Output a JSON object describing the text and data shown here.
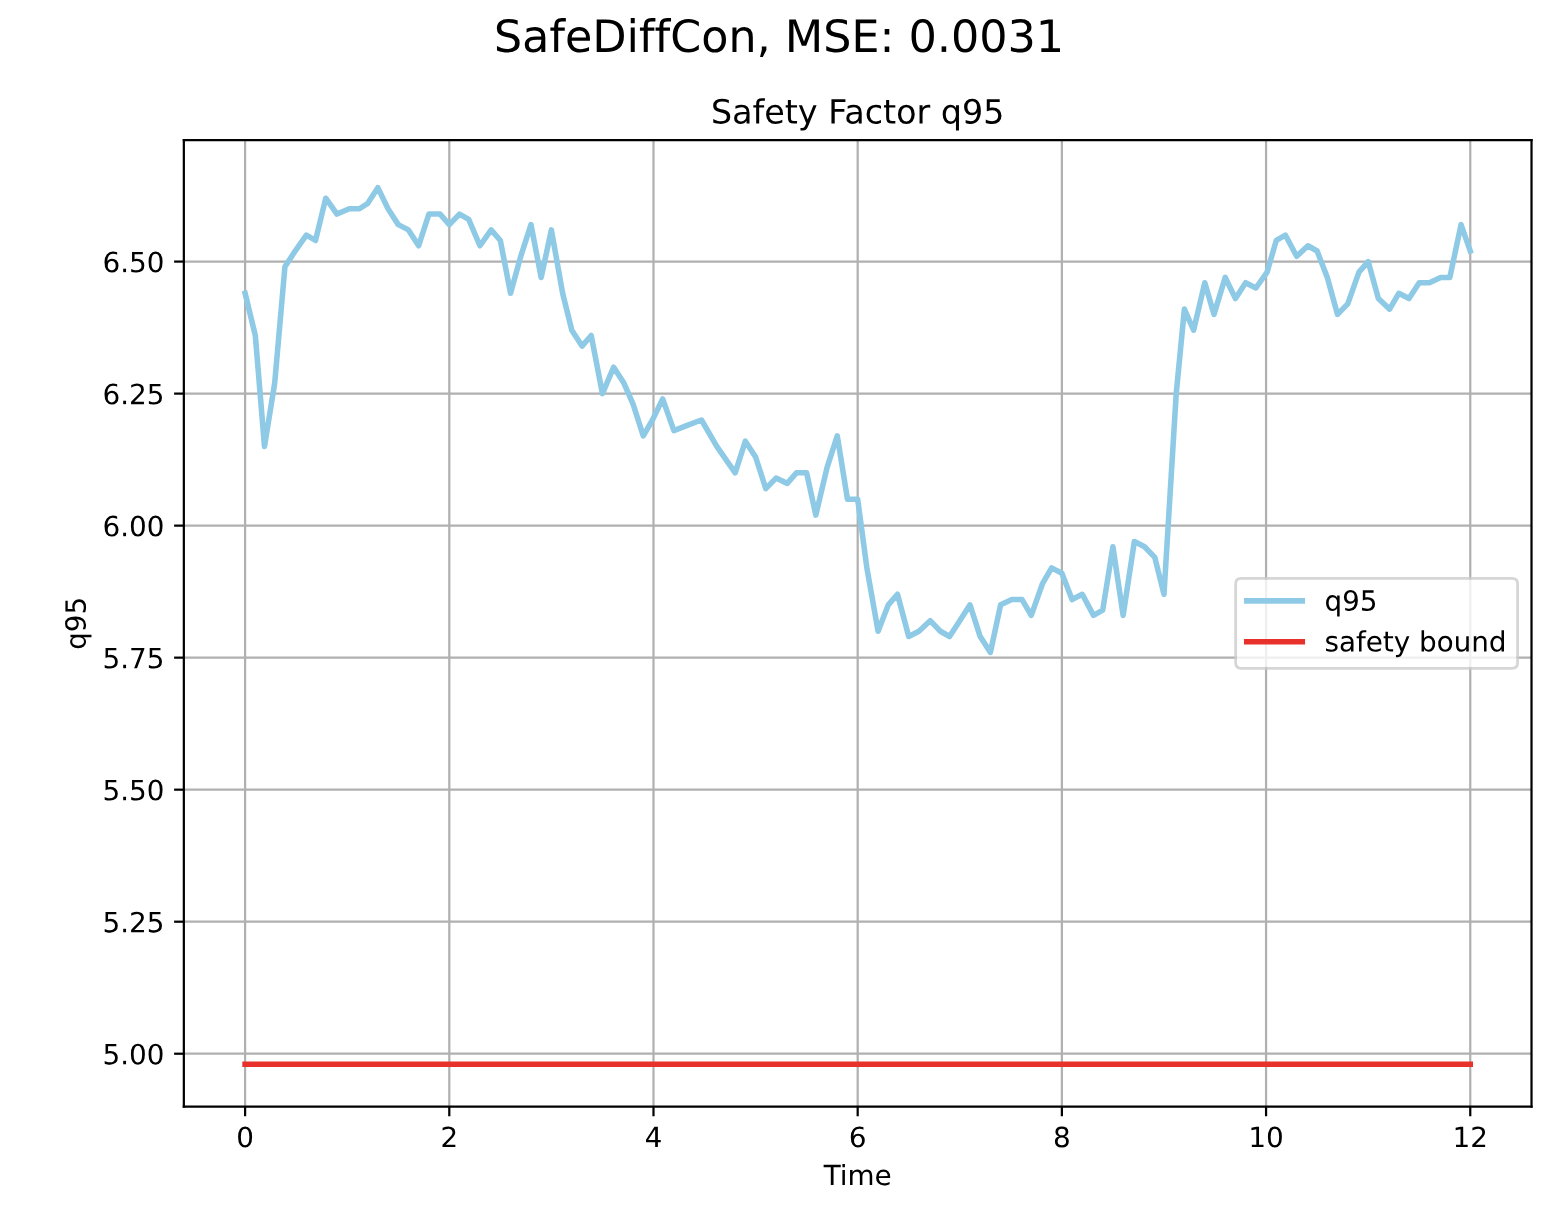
{
  "chart_data": {
    "type": "line",
    "title": "SafeDiffCon, MSE: 0.0031",
    "subtitle": "Safety Factor q95",
    "xlabel": "Time",
    "ylabel": "q95",
    "series": [
      {
        "name": "q95",
        "color": "#8ecae6",
        "x": [
          0,
          0.1,
          0.19,
          0.29,
          0.39,
          0.49,
          0.6,
          0.69,
          0.79,
          0.9,
          1.02,
          1.12,
          1.2,
          1.3,
          1.4,
          1.5,
          1.6,
          1.7,
          1.8,
          1.91,
          2.0,
          2.1,
          2.19,
          2.3,
          2.41,
          2.5,
          2.6,
          2.7,
          2.8,
          2.9,
          3.0,
          3.11,
          3.2,
          3.3,
          3.39,
          3.5,
          3.61,
          3.71,
          3.8,
          3.9,
          3.99,
          4.09,
          4.2,
          4.33,
          4.47,
          4.62,
          4.8,
          4.9,
          5.0,
          5.1,
          5.2,
          5.31,
          5.4,
          5.5,
          5.59,
          5.7,
          5.8,
          5.9,
          6.0,
          6.09,
          6.2,
          6.3,
          6.39,
          6.5,
          6.6,
          6.71,
          6.81,
          6.9,
          7.0,
          7.1,
          7.2,
          7.3,
          7.4,
          7.51,
          7.61,
          7.7,
          7.81,
          7.9,
          8.0,
          8.1,
          8.2,
          8.31,
          8.4,
          8.5,
          8.6,
          8.71,
          8.81,
          8.91,
          9.0,
          9.12,
          9.2,
          9.29,
          9.4,
          9.49,
          9.6,
          9.7,
          9.8,
          9.9,
          10.01,
          10.1,
          10.19,
          10.3,
          10.41,
          10.5,
          10.6,
          10.7,
          10.8,
          10.91,
          11.0,
          11.1,
          11.21,
          11.3,
          11.4,
          11.5,
          11.6,
          11.71,
          11.8,
          11.91,
          12.0
        ],
        "values": [
          6.44,
          6.36,
          6.15,
          6.27,
          6.49,
          6.52,
          6.55,
          6.54,
          6.62,
          6.59,
          6.6,
          6.6,
          6.61,
          6.64,
          6.6,
          6.57,
          6.56,
          6.53,
          6.59,
          6.59,
          6.57,
          6.59,
          6.58,
          6.53,
          6.56,
          6.54,
          6.44,
          6.51,
          6.57,
          6.47,
          6.56,
          6.44,
          6.37,
          6.34,
          6.36,
          6.25,
          6.3,
          6.27,
          6.23,
          6.17,
          6.2,
          6.24,
          6.18,
          6.19,
          6.2,
          6.15,
          6.1,
          6.16,
          6.13,
          6.07,
          6.09,
          6.08,
          6.1,
          6.1,
          6.02,
          6.11,
          6.17,
          6.05,
          6.05,
          5.92,
          5.8,
          5.85,
          5.87,
          5.79,
          5.8,
          5.82,
          5.8,
          5.79,
          5.82,
          5.85,
          5.79,
          5.76,
          5.85,
          5.86,
          5.86,
          5.83,
          5.89,
          5.92,
          5.91,
          5.86,
          5.87,
          5.83,
          5.84,
          5.96,
          5.83,
          5.97,
          5.96,
          5.94,
          5.87,
          6.25,
          6.41,
          6.37,
          6.46,
          6.4,
          6.47,
          6.43,
          6.46,
          6.45,
          6.48,
          6.54,
          6.55,
          6.51,
          6.53,
          6.52,
          6.47,
          6.4,
          6.42,
          6.48,
          6.5,
          6.43,
          6.41,
          6.44,
          6.43,
          6.46,
          6.46,
          6.47,
          6.47,
          6.57,
          6.52
        ]
      },
      {
        "name": "safety bound",
        "color": "#e8312a",
        "x": [
          0,
          12
        ],
        "values": [
          4.98,
          4.98
        ]
      }
    ],
    "xlim": [
      -0.6,
      12.6
    ],
    "ylim": [
      4.9,
      6.73
    ],
    "xticks": [
      0,
      2,
      4,
      6,
      8,
      10,
      12
    ],
    "yticks": [
      {
        "value": 5.0,
        "label": "5.00"
      },
      {
        "value": 5.25,
        "label": "5.25"
      },
      {
        "value": 5.5,
        "label": "5.50"
      },
      {
        "value": 5.75,
        "label": "5.75"
      },
      {
        "value": 6.0,
        "label": "6.00"
      },
      {
        "value": 6.25,
        "label": "6.25"
      },
      {
        "value": 6.5,
        "label": "6.50"
      }
    ],
    "grid": true,
    "legend": "center right",
    "marker": "none",
    "line_style": "solid"
  }
}
